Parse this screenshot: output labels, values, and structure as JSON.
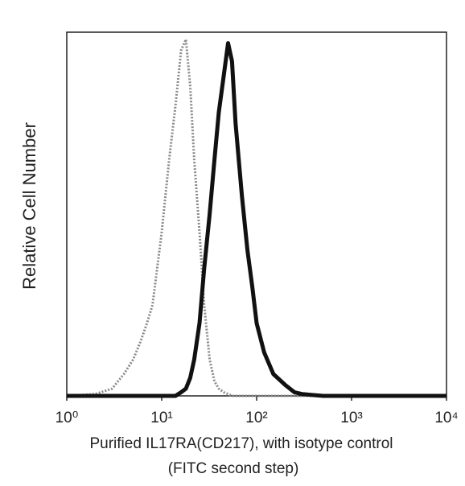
{
  "chart_data": {
    "type": "line",
    "y_label": "Relative Cell Number",
    "x_label": [
      "Purified  IL17RA(CD217), with isotype control",
      "(FITC second step)"
    ],
    "log_x": true,
    "x": [
      1,
      2,
      3,
      4,
      5,
      6,
      7,
      8,
      10,
      12,
      14,
      16,
      18,
      20,
      22,
      25,
      28,
      32,
      36,
      40,
      45,
      50,
      55,
      60,
      70,
      80,
      90,
      100,
      120,
      150,
      200,
      250,
      300,
      500,
      1000,
      10000
    ],
    "series": [
      {
        "color": "#8a8a8a",
        "dashed": true,
        "values": [
          0,
          0.5,
          2,
          6,
          10,
          15,
          20,
          25,
          45,
          65,
          80,
          95,
          98,
          85,
          65,
          45,
          25,
          10,
          4,
          2,
          1,
          0.5,
          0,
          0,
          0,
          0,
          0,
          0,
          0,
          0,
          0,
          0,
          0,
          0,
          0,
          0
        ]
      },
      {
        "color": "#111111",
        "dashed": false,
        "values": [
          0,
          0,
          0,
          0,
          0,
          0,
          0,
          0,
          0,
          0,
          0,
          1,
          2,
          5,
          10,
          20,
          35,
          50,
          65,
          78,
          88,
          97,
          92,
          75,
          55,
          40,
          30,
          20,
          12,
          6,
          3,
          1,
          0.5,
          0,
          0,
          0
        ]
      }
    ],
    "xlim": [
      1,
      10000
    ],
    "ylim": [
      0,
      100
    ],
    "xticks": [
      {
        "value": 1,
        "label": "10⁰"
      },
      {
        "value": 10,
        "label": "10¹"
      },
      {
        "value": 100,
        "label": "10²"
      },
      {
        "value": 1000,
        "label": "10³"
      },
      {
        "value": 10000,
        "label": "10⁴"
      }
    ]
  }
}
